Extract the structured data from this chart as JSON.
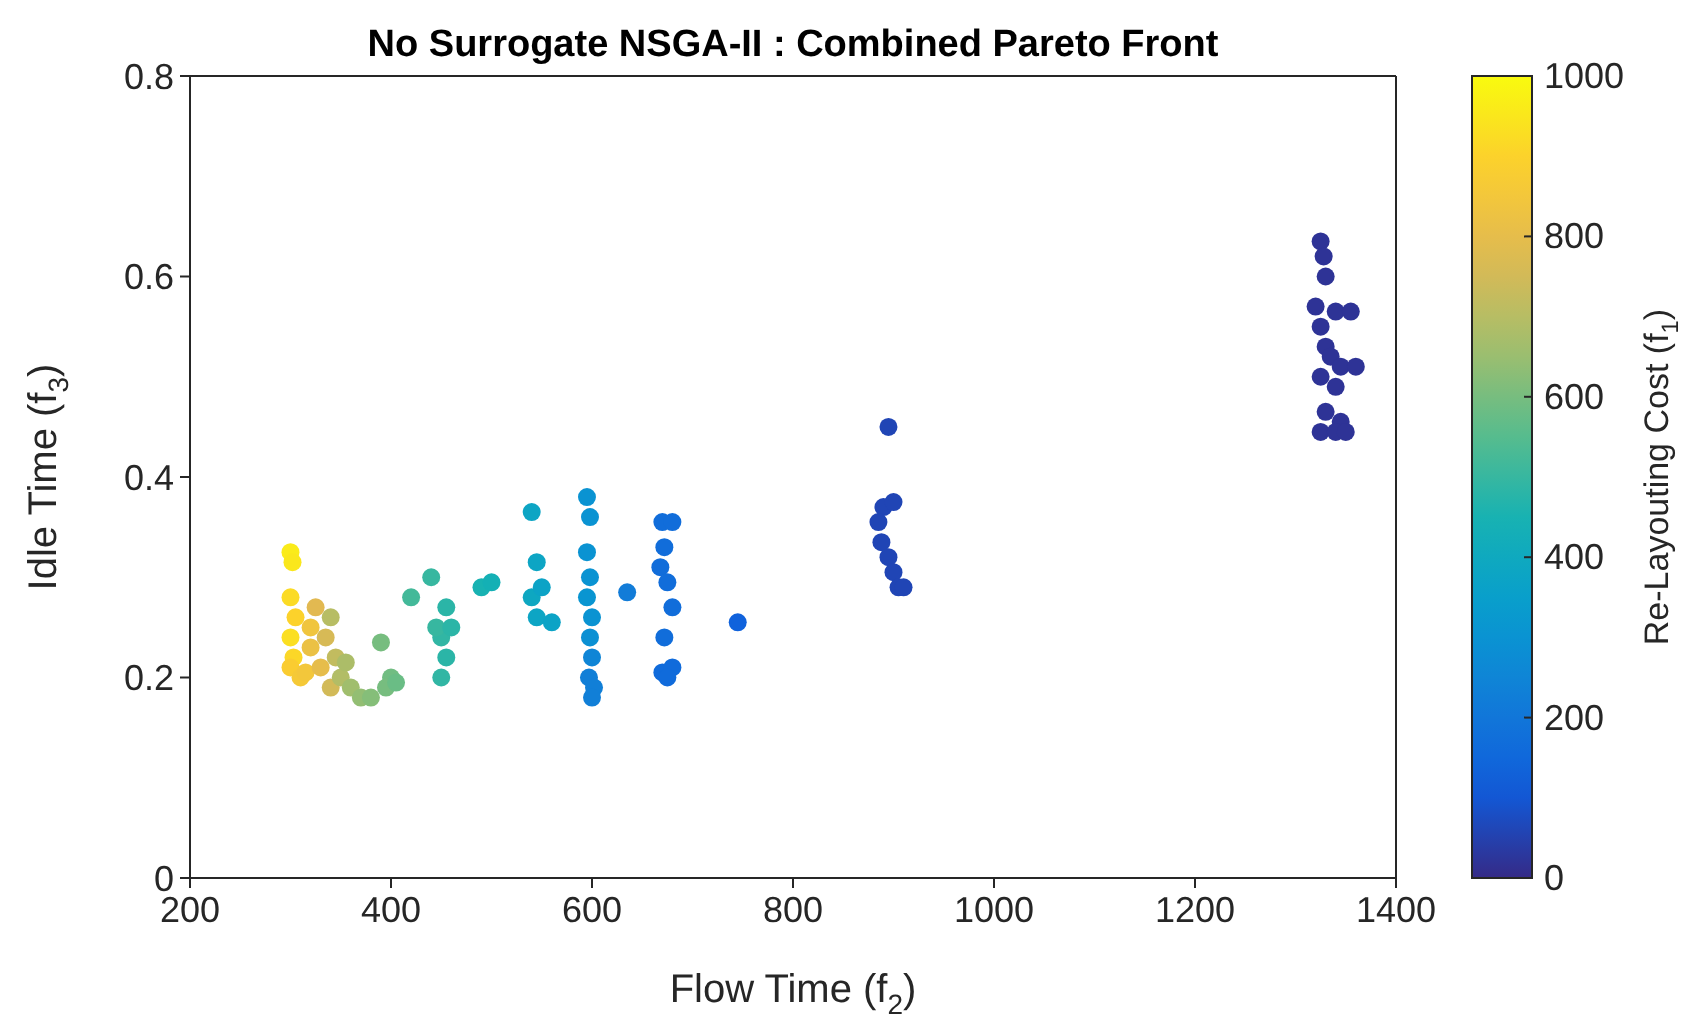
{
  "chart_data": {
    "type": "scatter",
    "title": "No Surrogate NSGA-II : Combined Pareto Front",
    "xlabel": "Flow Time (f$_{2}$)",
    "ylabel": "Idle Time (f$_{3}$)",
    "clabel": "Re-Layouting Cost (f$_{1}$)",
    "xlim": [
      200,
      1400
    ],
    "xticks": [
      200,
      400,
      600,
      800,
      1000,
      1200,
      1400
    ],
    "ylim": [
      0,
      0.8
    ],
    "yticks": [
      0,
      0.2,
      0.4,
      0.6,
      0.8
    ],
    "clim": [
      0,
      1000
    ],
    "cticks": [
      0,
      200,
      400,
      600,
      800,
      1000
    ],
    "grid": false,
    "legend": false,
    "marker": "circle",
    "x": [
      300,
      302,
      300,
      305,
      300,
      303,
      300,
      310,
      315,
      320,
      325,
      320,
      330,
      335,
      340,
      345,
      340,
      350,
      355,
      360,
      370,
      380,
      390,
      400,
      395,
      405,
      420,
      440,
      450,
      445,
      455,
      450,
      460,
      455,
      490,
      500,
      540,
      545,
      540,
      550,
      545,
      560,
      595,
      598,
      595,
      598,
      595,
      600,
      598,
      600,
      597,
      602,
      600,
      635,
      670,
      680,
      672,
      668,
      675,
      680,
      672,
      670,
      680,
      675,
      745,
      895,
      890,
      900,
      885,
      888,
      895,
      900,
      905,
      910,
      1325,
      1328,
      1330,
      1320,
      1340,
      1355,
      1325,
      1330,
      1335,
      1345,
      1360,
      1325,
      1340,
      1330,
      1345,
      1325,
      1340,
      1350
    ],
    "values": [
      0.325,
      0.315,
      0.28,
      0.26,
      0.24,
      0.22,
      0.21,
      0.2,
      0.205,
      0.25,
      0.27,
      0.23,
      0.21,
      0.24,
      0.26,
      0.22,
      0.19,
      0.2,
      0.215,
      0.19,
      0.18,
      0.18,
      0.235,
      0.2,
      0.19,
      0.195,
      0.28,
      0.3,
      0.24,
      0.25,
      0.22,
      0.2,
      0.25,
      0.27,
      0.29,
      0.295,
      0.365,
      0.315,
      0.28,
      0.29,
      0.26,
      0.255,
      0.38,
      0.36,
      0.325,
      0.3,
      0.28,
      0.26,
      0.24,
      0.22,
      0.2,
      0.19,
      0.18,
      0.285,
      0.355,
      0.355,
      0.33,
      0.31,
      0.295,
      0.27,
      0.24,
      0.205,
      0.21,
      0.2,
      0.255,
      0.45,
      0.37,
      0.375,
      0.355,
      0.335,
      0.32,
      0.305,
      0.29,
      0.29,
      0.635,
      0.62,
      0.6,
      0.57,
      0.565,
      0.565,
      0.55,
      0.53,
      0.52,
      0.51,
      0.51,
      0.5,
      0.49,
      0.465,
      0.455,
      0.445,
      0.445,
      0.445
    ],
    "cvalues": [
      960,
      950,
      920,
      900,
      930,
      910,
      880,
      860,
      850,
      840,
      780,
      820,
      800,
      760,
      700,
      720,
      750,
      690,
      680,
      660,
      640,
      620,
      600,
      590,
      600,
      580,
      520,
      500,
      490,
      500,
      480,
      490,
      480,
      480,
      450,
      440,
      380,
      380,
      390,
      370,
      380,
      370,
      300,
      300,
      300,
      300,
      310,
      300,
      290,
      250,
      230,
      230,
      230,
      220,
      170,
      170,
      170,
      170,
      170,
      170,
      170,
      160,
      160,
      160,
      130,
      60,
      60,
      60,
      60,
      60,
      60,
      60,
      60,
      60,
      20,
      20,
      20,
      20,
      20,
      20,
      20,
      20,
      20,
      20,
      20,
      20,
      20,
      20,
      20,
      20,
      20,
      20
    ]
  }
}
